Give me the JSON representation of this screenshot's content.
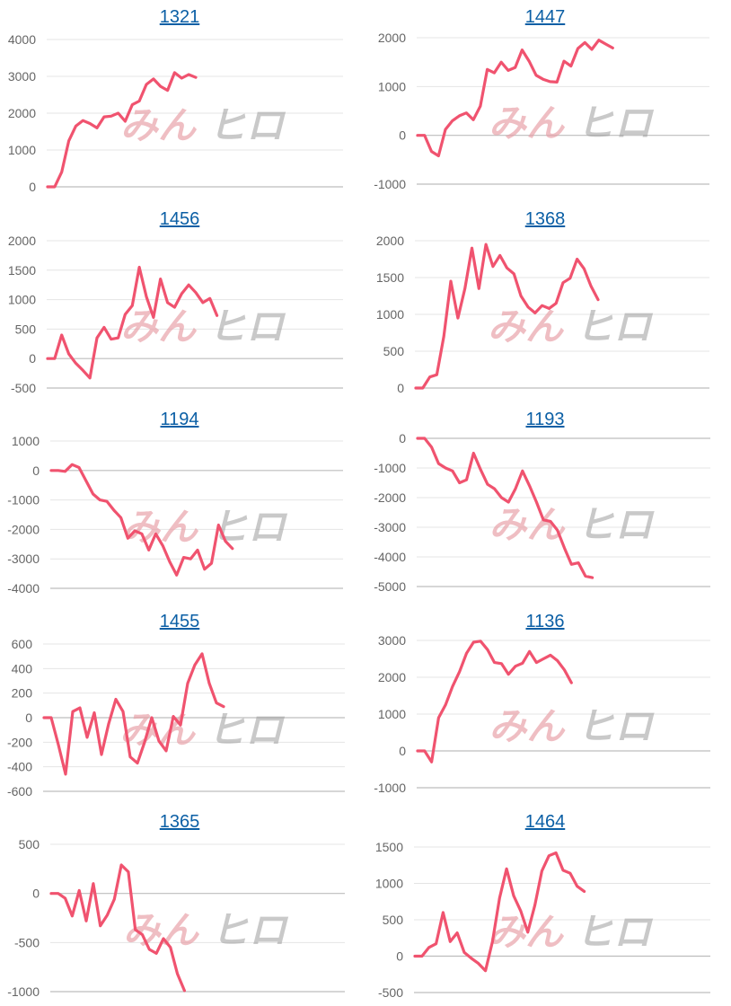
{
  "watermark": {
    "part1": "みん",
    "part2": "ヒロ"
  },
  "line_color": "#f0536f",
  "chart_data": [
    {
      "type": "line",
      "title": "1321",
      "ylim": [
        0,
        4000
      ],
      "yticks": [
        0,
        1000,
        2000,
        3000,
        4000
      ],
      "x_max": 42,
      "values": [
        0,
        0,
        400,
        1250,
        1650,
        1800,
        1720,
        1600,
        1900,
        1920,
        2000,
        1780,
        2230,
        2330,
        2780,
        2930,
        2730,
        2620,
        3100,
        2950,
        3050,
        2970
      ]
    },
    {
      "type": "line",
      "title": "1447",
      "ylim": [
        -1000,
        2000
      ],
      "yticks": [
        -1000,
        0,
        1000,
        2000
      ],
      "x_max": 42,
      "values": [
        0,
        0,
        -330,
        -420,
        120,
        300,
        400,
        460,
        320,
        600,
        1350,
        1280,
        1500,
        1330,
        1390,
        1750,
        1520,
        1230,
        1150,
        1100,
        1090,
        1520,
        1420,
        1780,
        1900,
        1760,
        1950,
        1870,
        1790
      ]
    },
    {
      "type": "line",
      "title": "1456",
      "ylim": [
        -500,
        2000
      ],
      "yticks": [
        -500,
        0,
        500,
        1000,
        1500,
        2000
      ],
      "x_max": 42,
      "values": [
        0,
        0,
        400,
        80,
        -80,
        -200,
        -330,
        350,
        530,
        330,
        350,
        750,
        900,
        1550,
        1050,
        700,
        1350,
        950,
        870,
        1100,
        1250,
        1120,
        950,
        1020,
        730
      ]
    },
    {
      "type": "line",
      "title": "1368",
      "ylim": [
        0,
        2000
      ],
      "yticks": [
        0,
        500,
        1000,
        1500,
        2000
      ],
      "x_max": 42,
      "values": [
        0,
        0,
        150,
        180,
        700,
        1450,
        950,
        1350,
        1900,
        1350,
        1950,
        1650,
        1800,
        1630,
        1550,
        1250,
        1100,
        1020,
        1120,
        1080,
        1150,
        1430,
        1490,
        1750,
        1620,
        1380,
        1200
      ]
    },
    {
      "type": "line",
      "title": "1194",
      "ylim": [
        -4000,
        1000
      ],
      "yticks": [
        -4000,
        -3000,
        -2000,
        -1000,
        0,
        1000
      ],
      "x_max": 42,
      "values": [
        0,
        0,
        -30,
        200,
        100,
        -350,
        -800,
        -1000,
        -1050,
        -1350,
        -1600,
        -2300,
        -2050,
        -2150,
        -2700,
        -2150,
        -2550,
        -3100,
        -3550,
        -2950,
        -3000,
        -2700,
        -3350,
        -3150,
        -1850,
        -2400,
        -2650
      ]
    },
    {
      "type": "line",
      "title": "1193",
      "ylim": [
        -5000,
        0
      ],
      "yticks": [
        -5000,
        -4000,
        -3000,
        -2000,
        -1000,
        0
      ],
      "x_max": 42,
      "values": [
        0,
        0,
        -300,
        -850,
        -1000,
        -1100,
        -1500,
        -1400,
        -500,
        -1050,
        -1550,
        -1700,
        -2000,
        -2150,
        -1700,
        -1100,
        -1600,
        -2150,
        -2750,
        -2800,
        -3100,
        -3700,
        -4250,
        -4200,
        -4650,
        -4700
      ]
    },
    {
      "type": "line",
      "title": "1455",
      "ylim": [
        -600,
        600
      ],
      "yticks": [
        -600,
        -400,
        -200,
        0,
        200,
        400,
        600
      ],
      "x_max": 42,
      "values": [
        0,
        0,
        -220,
        -460,
        50,
        80,
        -160,
        40,
        -300,
        -50,
        150,
        50,
        -320,
        -370,
        -200,
        0,
        -190,
        -270,
        10,
        -60,
        280,
        430,
        520,
        280,
        120,
        90
      ]
    },
    {
      "type": "line",
      "title": "1136",
      "ylim": [
        -1000,
        3000
      ],
      "yticks": [
        -1000,
        0,
        1000,
        2000,
        3000
      ],
      "x_max": 42,
      "values": [
        0,
        0,
        -300,
        900,
        1250,
        1750,
        2150,
        2650,
        2950,
        2980,
        2750,
        2400,
        2370,
        2080,
        2300,
        2380,
        2700,
        2400,
        2500,
        2600,
        2450,
        2200,
        1850
      ]
    },
    {
      "type": "line",
      "title": "1365",
      "ylim": [
        -1000,
        500
      ],
      "yticks": [
        -1000,
        -500,
        0,
        500
      ],
      "x_max": 42,
      "values": [
        0,
        0,
        -50,
        -230,
        30,
        -280,
        100,
        -330,
        -220,
        -60,
        290,
        220,
        -370,
        -420,
        -570,
        -610,
        -460,
        -550,
        -820,
        -990
      ]
    },
    {
      "type": "line",
      "title": "1464",
      "ylim": [
        -500,
        1500
      ],
      "yticks": [
        -500,
        0,
        500,
        1000,
        1500
      ],
      "x_max": 42,
      "values": [
        0,
        0,
        120,
        170,
        600,
        200,
        320,
        50,
        -30,
        -100,
        -200,
        200,
        800,
        1200,
        830,
        620,
        330,
        700,
        1170,
        1380,
        1420,
        1180,
        1140,
        960,
        890
      ]
    }
  ]
}
